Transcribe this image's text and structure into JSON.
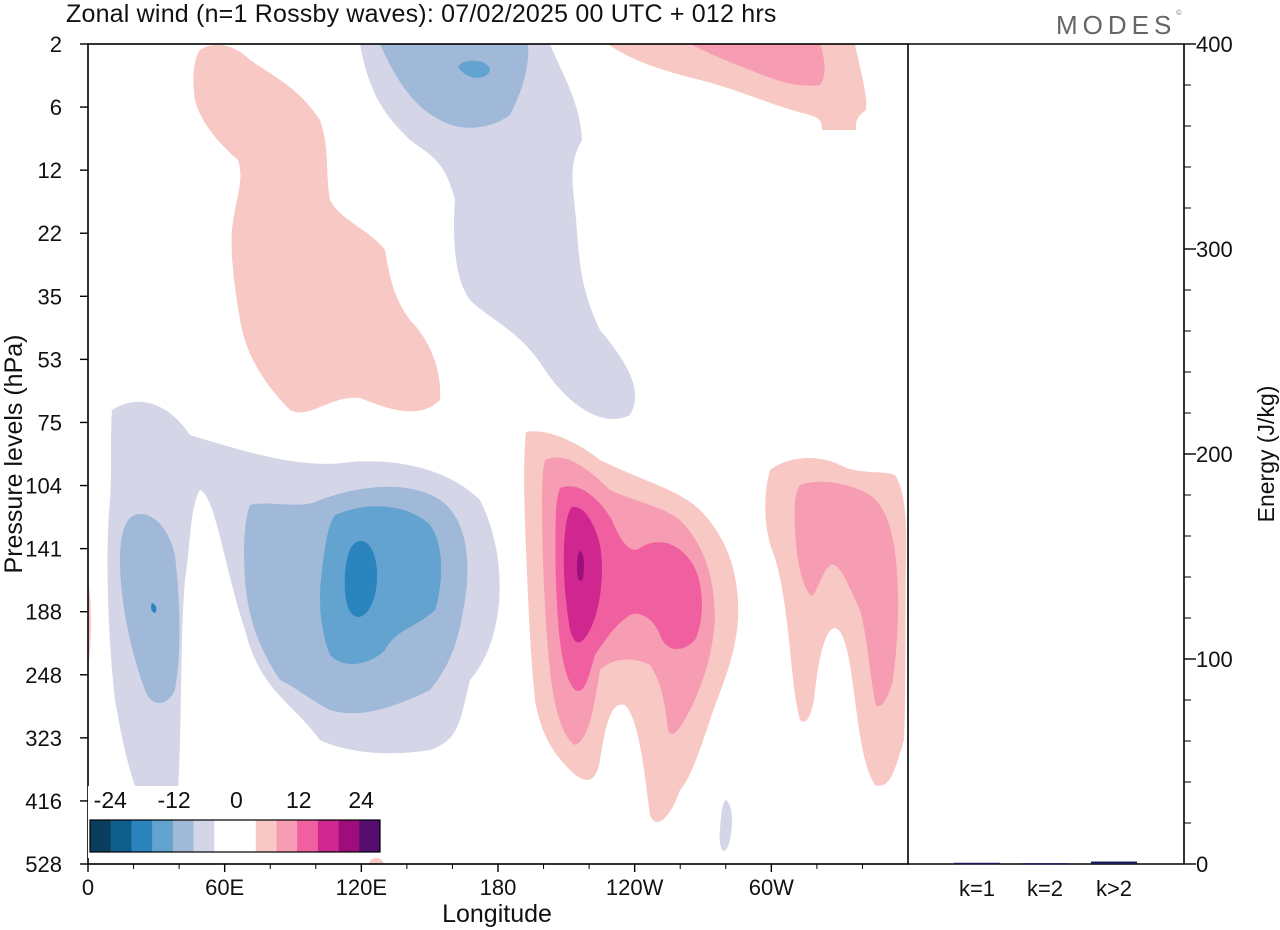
{
  "title": "Zonal wind (n=1 Rossby waves):  07/02/2025  00 UTC  + 012 hrs",
  "brand": "MODES",
  "brand_mark": "©",
  "chart_data": [
    {
      "type": "heatmap",
      "xlabel": "Longitude",
      "ylabel": "Pressure levels (hPa)",
      "x_ticks": [
        "0",
        "60E",
        "120E",
        "180",
        "120W",
        "60W"
      ],
      "y_ticks": [
        "2",
        "6",
        "12",
        "22",
        "35",
        "53",
        "75",
        "104",
        "141",
        "188",
        "248",
        "323",
        "416",
        "528"
      ],
      "y_scale": "log",
      "colorbar": {
        "labels": [
          "-24",
          "-12",
          "0",
          "12",
          "24"
        ],
        "colors": [
          "#0b3d5c",
          "#0e5f8c",
          "#2b84bd",
          "#62a3cf",
          "#a1b9d9",
          "#d4d6e8",
          "#ffffff",
          "#ffffff",
          "#f8c9c4",
          "#f79db3",
          "#f060a0",
          "#cf2690",
          "#9e0d7c",
          "#560c6e"
        ]
      },
      "features": [
        {
          "sign": "negative",
          "peak_longitude": 120,
          "peak_pressure": 150,
          "max_abs": 12
        },
        {
          "sign": "negative",
          "peak_longitude": 30,
          "peak_pressure": 160,
          "max_abs": 9
        },
        {
          "sign": "negative",
          "peak_longitude": 170,
          "peak_pressure": 3,
          "max_abs": 9
        },
        {
          "sign": "positive",
          "peak_longitude": 220,
          "peak_pressure": 150,
          "max_abs": 16
        },
        {
          "sign": "positive",
          "peak_longitude": 315,
          "peak_pressure": 150,
          "max_abs": 6
        },
        {
          "sign": "positive",
          "peak_longitude": 75,
          "peak_pressure": 25,
          "max_abs": 3
        },
        {
          "sign": "positive",
          "peak_longitude": 280,
          "peak_pressure": 3,
          "max_abs": 6
        }
      ]
    },
    {
      "type": "bar",
      "ylabel": "Energy (J/kg)",
      "categories": [
        "k=1",
        "k=2",
        "k>2"
      ],
      "values": [
        0.6,
        0.4,
        1.2
      ],
      "ylim": [
        0,
        400
      ],
      "y_ticks": [
        "0",
        "100",
        "200",
        "300",
        "400"
      ]
    }
  ]
}
